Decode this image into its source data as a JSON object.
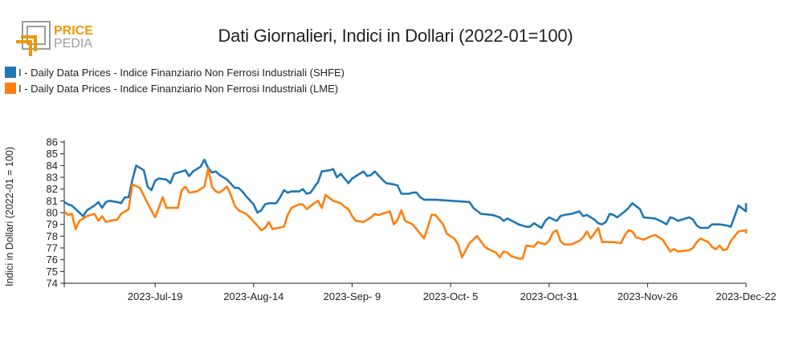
{
  "logo": {
    "word1": "PRICE",
    "word2": "PEDIA"
  },
  "chart_data": {
    "type": "line",
    "title": "Dati Giornalieri, Indici in Dollari (2022-01=100)",
    "xlabel": "",
    "ylabel": "Indici in Dollari (2022-01 = 100)",
    "ylim": [
      74,
      86
    ],
    "yticks": [
      74,
      75,
      76,
      77,
      78,
      79,
      80,
      81,
      82,
      83,
      84,
      85,
      86
    ],
    "x_start": "2023-06-25",
    "x_end": "2023-12-22",
    "xticks": [
      {
        "date": "2023-07-19",
        "label": "2023-Jul-19"
      },
      {
        "date": "2023-08-14",
        "label": "2023-Aug-14"
      },
      {
        "date": "2023-09-09",
        "label": "2023-Sep- 9"
      },
      {
        "date": "2023-10-05",
        "label": "2023-Oct- 5"
      },
      {
        "date": "2023-10-31",
        "label": "2023-Oct-31"
      },
      {
        "date": "2023-11-26",
        "label": "2023-Nov-26"
      },
      {
        "date": "2023-12-22",
        "label": "2023-Dec-22"
      }
    ],
    "grid": false,
    "legend_position": "top-left",
    "series": [
      {
        "name": "I - Daily Data Prices - Indice Finanziario Non Ferrosi Industriali (SHFE)",
        "color": "#1f77b4",
        "points": [
          [
            "2023-06-25",
            80.9
          ],
          [
            "2023-06-26",
            80.7
          ],
          [
            "2023-06-27",
            80.6
          ],
          [
            "2023-06-28",
            80.3
          ],
          [
            "2023-06-29",
            80.0
          ],
          [
            "2023-06-30",
            79.7
          ],
          [
            "2023-07-01",
            80.2
          ],
          [
            "2023-07-03",
            80.6
          ],
          [
            "2023-07-04",
            80.9
          ],
          [
            "2023-07-05",
            80.4
          ],
          [
            "2023-07-06",
            80.9
          ],
          [
            "2023-07-07",
            81.0
          ],
          [
            "2023-07-09",
            80.9
          ],
          [
            "2023-07-10",
            80.8
          ],
          [
            "2023-07-11",
            81.3
          ],
          [
            "2023-07-12",
            81.3
          ],
          [
            "2023-07-13",
            82.8
          ],
          [
            "2023-07-14",
            84.0
          ],
          [
            "2023-07-16",
            83.6
          ],
          [
            "2023-07-17",
            82.2
          ],
          [
            "2023-07-18",
            81.9
          ],
          [
            "2023-07-19",
            82.7
          ],
          [
            "2023-07-20",
            82.9
          ],
          [
            "2023-07-22",
            82.8
          ],
          [
            "2023-07-23",
            82.5
          ],
          [
            "2023-07-24",
            83.3
          ],
          [
            "2023-07-26",
            83.5
          ],
          [
            "2023-07-27",
            83.6
          ],
          [
            "2023-07-28",
            83.1
          ],
          [
            "2023-07-29",
            83.5
          ],
          [
            "2023-07-31",
            83.9
          ],
          [
            "2023-08-01",
            84.5
          ],
          [
            "2023-08-02",
            83.8
          ],
          [
            "2023-08-03",
            83.4
          ],
          [
            "2023-08-04",
            83.5
          ],
          [
            "2023-08-05",
            83.2
          ],
          [
            "2023-08-07",
            82.8
          ],
          [
            "2023-08-09",
            82.1
          ],
          [
            "2023-08-10",
            82.1
          ],
          [
            "2023-08-11",
            81.8
          ],
          [
            "2023-08-12",
            81.4
          ],
          [
            "2023-08-14",
            80.7
          ],
          [
            "2023-08-15",
            80.0
          ],
          [
            "2023-08-16",
            80.2
          ],
          [
            "2023-08-17",
            80.7
          ],
          [
            "2023-08-18",
            80.8
          ],
          [
            "2023-08-20",
            80.8
          ],
          [
            "2023-08-21",
            81.3
          ],
          [
            "2023-08-22",
            81.9
          ],
          [
            "2023-08-23",
            81.7
          ],
          [
            "2023-08-24",
            81.8
          ],
          [
            "2023-08-26",
            81.8
          ],
          [
            "2023-08-27",
            82.0
          ],
          [
            "2023-08-28",
            81.6
          ],
          [
            "2023-08-29",
            81.7
          ],
          [
            "2023-08-31",
            82.6
          ],
          [
            "2023-09-01",
            83.5
          ],
          [
            "2023-09-03",
            83.6
          ],
          [
            "2023-09-04",
            83.7
          ],
          [
            "2023-09-05",
            83.0
          ],
          [
            "2023-09-06",
            83.3
          ],
          [
            "2023-09-08",
            82.5
          ],
          [
            "2023-09-09",
            82.9
          ],
          [
            "2023-09-10",
            83.1
          ],
          [
            "2023-09-12",
            83.5
          ],
          [
            "2023-09-13",
            83.1
          ],
          [
            "2023-09-14",
            83.2
          ],
          [
            "2023-09-15",
            83.5
          ],
          [
            "2023-09-17",
            82.8
          ],
          [
            "2023-09-18",
            82.5
          ],
          [
            "2023-09-20",
            82.4
          ],
          [
            "2023-09-21",
            82.3
          ],
          [
            "2023-09-22",
            81.6
          ],
          [
            "2023-09-24",
            81.6
          ],
          [
            "2023-09-25",
            81.7
          ],
          [
            "2023-09-26",
            81.7
          ],
          [
            "2023-09-27",
            81.3
          ],
          [
            "2023-09-28",
            81.1
          ],
          [
            "2023-09-30",
            81.1
          ],
          [
            "2023-10-01",
            81.1
          ],
          [
            "2023-10-10",
            80.9
          ],
          [
            "2023-10-11",
            80.4
          ],
          [
            "2023-10-13",
            79.9
          ],
          [
            "2023-10-16",
            79.8
          ],
          [
            "2023-10-18",
            79.6
          ],
          [
            "2023-10-19",
            79.3
          ],
          [
            "2023-10-20",
            79.5
          ],
          [
            "2023-10-23",
            79.0
          ],
          [
            "2023-10-25",
            78.8
          ],
          [
            "2023-10-26",
            78.8
          ],
          [
            "2023-10-27",
            79.1
          ],
          [
            "2023-10-29",
            78.7
          ],
          [
            "2023-10-30",
            79.3
          ],
          [
            "2023-10-31",
            79.6
          ],
          [
            "2023-11-02",
            79.3
          ],
          [
            "2023-11-03",
            79.7
          ],
          [
            "2023-11-04",
            79.8
          ],
          [
            "2023-11-06",
            79.9
          ],
          [
            "2023-11-08",
            80.1
          ],
          [
            "2023-11-09",
            79.7
          ],
          [
            "2023-11-10",
            79.8
          ],
          [
            "2023-11-12",
            79.4
          ],
          [
            "2023-11-13",
            79.1
          ],
          [
            "2023-11-14",
            79.0
          ],
          [
            "2023-11-15",
            79.2
          ],
          [
            "2023-11-16",
            79.9
          ],
          [
            "2023-11-17",
            79.8
          ],
          [
            "2023-11-18",
            79.6
          ],
          [
            "2023-11-20",
            80.1
          ],
          [
            "2023-11-21",
            80.4
          ],
          [
            "2023-11-22",
            80.8
          ],
          [
            "2023-11-24",
            80.3
          ],
          [
            "2023-11-25",
            79.6
          ],
          [
            "2023-11-28",
            79.5
          ],
          [
            "2023-11-30",
            79.2
          ],
          [
            "2023-12-01",
            79.0
          ],
          [
            "2023-12-02",
            79.6
          ],
          [
            "2023-12-03",
            79.5
          ],
          [
            "2023-12-04",
            79.3
          ],
          [
            "2023-12-07",
            79.6
          ],
          [
            "2023-12-08",
            79.4
          ],
          [
            "2023-12-09",
            78.9
          ],
          [
            "2023-12-10",
            78.7
          ],
          [
            "2023-12-12",
            78.7
          ],
          [
            "2023-12-13",
            79.0
          ],
          [
            "2023-12-15",
            79.0
          ],
          [
            "2023-12-17",
            78.9
          ],
          [
            "2023-12-18",
            78.8
          ],
          [
            "2023-12-20",
            80.6
          ],
          [
            "2023-12-24",
            80.1
          ],
          [
            "2023-12-25",
            80.4
          ],
          [
            "2023-12-26",
            80.3
          ],
          [
            "2023-12-27",
            80.8
          ]
        ]
      },
      {
        "name": "I - Daily Data Prices - Indice Finanziario Non Ferrosi Industriali (LME)",
        "color": "#ff7f0e",
        "points": [
          [
            "2023-06-25",
            80.1
          ],
          [
            "2023-06-26",
            79.8
          ],
          [
            "2023-06-27",
            79.9
          ],
          [
            "2023-06-28",
            78.6
          ],
          [
            "2023-06-29",
            79.3
          ],
          [
            "2023-07-01",
            79.7
          ],
          [
            "2023-07-03",
            79.9
          ],
          [
            "2023-07-04",
            79.3
          ],
          [
            "2023-07-05",
            79.7
          ],
          [
            "2023-07-06",
            79.2
          ],
          [
            "2023-07-07",
            79.3
          ],
          [
            "2023-07-09",
            79.4
          ],
          [
            "2023-07-10",
            79.9
          ],
          [
            "2023-07-12",
            80.3
          ],
          [
            "2023-07-13",
            82.4
          ],
          [
            "2023-07-15",
            82.1
          ],
          [
            "2023-07-17",
            80.8
          ],
          [
            "2023-07-19",
            79.6
          ],
          [
            "2023-07-21",
            81.3
          ],
          [
            "2023-07-22",
            80.4
          ],
          [
            "2023-07-25",
            80.4
          ],
          [
            "2023-07-26",
            81.9
          ],
          [
            "2023-07-27",
            82.2
          ],
          [
            "2023-07-28",
            81.7
          ],
          [
            "2023-07-30",
            81.8
          ],
          [
            "2023-08-01",
            82.2
          ],
          [
            "2023-08-02",
            83.7
          ],
          [
            "2023-08-03",
            82.2
          ],
          [
            "2023-08-04",
            81.8
          ],
          [
            "2023-08-05",
            81.7
          ],
          [
            "2023-08-07",
            82.2
          ],
          [
            "2023-08-08",
            81.5
          ],
          [
            "2023-08-09",
            80.6
          ],
          [
            "2023-08-10",
            80.2
          ],
          [
            "2023-08-12",
            79.9
          ],
          [
            "2023-08-13",
            79.6
          ],
          [
            "2023-08-15",
            78.9
          ],
          [
            "2023-08-16",
            78.5
          ],
          [
            "2023-08-17",
            78.7
          ],
          [
            "2023-08-18",
            79.2
          ],
          [
            "2023-08-19",
            78.6
          ],
          [
            "2023-08-22",
            78.8
          ],
          [
            "2023-08-23",
            79.8
          ],
          [
            "2023-08-24",
            80.4
          ],
          [
            "2023-08-26",
            80.7
          ],
          [
            "2023-08-27",
            80.7
          ],
          [
            "2023-08-28",
            80.3
          ],
          [
            "2023-08-30",
            80.8
          ],
          [
            "2023-08-31",
            81.0
          ],
          [
            "2023-09-01",
            80.4
          ],
          [
            "2023-09-02",
            81.5
          ],
          [
            "2023-09-04",
            81.0
          ],
          [
            "2023-09-06",
            80.8
          ],
          [
            "2023-09-07",
            80.5
          ],
          [
            "2023-09-08",
            80.3
          ],
          [
            "2023-09-09",
            79.7
          ],
          [
            "2023-09-10",
            79.3
          ],
          [
            "2023-09-12",
            79.2
          ],
          [
            "2023-09-14",
            79.6
          ],
          [
            "2023-09-15",
            79.9
          ],
          [
            "2023-09-16",
            79.8
          ],
          [
            "2023-09-19",
            80.1
          ],
          [
            "2023-09-20",
            79.0
          ],
          [
            "2023-09-21",
            79.4
          ],
          [
            "2023-09-22",
            80.2
          ],
          [
            "2023-09-23",
            79.3
          ],
          [
            "2023-09-25",
            79.0
          ],
          [
            "2023-09-26",
            78.6
          ],
          [
            "2023-09-28",
            77.8
          ],
          [
            "2023-09-30",
            79.8
          ],
          [
            "2023-10-01",
            79.8
          ],
          [
            "2023-10-02",
            79.4
          ],
          [
            "2023-10-03",
            79.0
          ],
          [
            "2023-10-04",
            78.2
          ],
          [
            "2023-10-06",
            77.8
          ],
          [
            "2023-10-07",
            77.3
          ],
          [
            "2023-10-08",
            76.2
          ],
          [
            "2023-10-10",
            77.4
          ],
          [
            "2023-10-12",
            78.0
          ],
          [
            "2023-10-14",
            77.1
          ],
          [
            "2023-10-15",
            76.9
          ],
          [
            "2023-10-17",
            76.6
          ],
          [
            "2023-10-18",
            76.2
          ],
          [
            "2023-10-19",
            76.7
          ],
          [
            "2023-10-20",
            76.6
          ],
          [
            "2023-10-21",
            76.3
          ],
          [
            "2023-10-23",
            76.1
          ],
          [
            "2023-10-24",
            76.1
          ],
          [
            "2023-10-25",
            77.2
          ],
          [
            "2023-10-27",
            77.1
          ],
          [
            "2023-10-28",
            77.5
          ],
          [
            "2023-10-30",
            77.3
          ],
          [
            "2023-10-31",
            77.6
          ],
          [
            "2023-11-01",
            78.3
          ],
          [
            "2023-11-02",
            78.5
          ],
          [
            "2023-11-03",
            77.6
          ],
          [
            "2023-11-04",
            77.3
          ],
          [
            "2023-11-06",
            77.3
          ],
          [
            "2023-11-08",
            77.6
          ],
          [
            "2023-11-09",
            77.9
          ],
          [
            "2023-11-10",
            78.4
          ],
          [
            "2023-11-11",
            77.8
          ],
          [
            "2023-11-13",
            78.7
          ],
          [
            "2023-11-14",
            77.5
          ],
          [
            "2023-11-17",
            77.5
          ],
          [
            "2023-11-19",
            77.4
          ],
          [
            "2023-11-20",
            78.1
          ],
          [
            "2023-11-21",
            78.5
          ],
          [
            "2023-11-22",
            78.4
          ],
          [
            "2023-11-23",
            77.9
          ],
          [
            "2023-11-25",
            77.7
          ],
          [
            "2023-11-27",
            78.0
          ],
          [
            "2023-11-28",
            78.1
          ],
          [
            "2023-11-29",
            77.9
          ],
          [
            "2023-11-30",
            77.7
          ],
          [
            "2023-12-01",
            77.2
          ],
          [
            "2023-12-02",
            76.7
          ],
          [
            "2023-12-03",
            76.9
          ],
          [
            "2023-12-04",
            76.7
          ],
          [
            "2023-12-07",
            76.8
          ],
          [
            "2023-12-08",
            77.0
          ],
          [
            "2023-12-09",
            77.5
          ],
          [
            "2023-12-10",
            77.8
          ],
          [
            "2023-12-12",
            77.5
          ],
          [
            "2023-12-13",
            77.1
          ],
          [
            "2023-12-14",
            76.9
          ],
          [
            "2023-12-15",
            77.2
          ],
          [
            "2023-12-16",
            76.8
          ],
          [
            "2023-12-17",
            76.9
          ],
          [
            "2023-12-18",
            77.6
          ],
          [
            "2023-12-20",
            78.4
          ],
          [
            "2023-12-22",
            78.5
          ],
          [
            "2023-12-23",
            78.4
          ],
          [
            "2023-12-25",
            78.3
          ],
          [
            "2023-12-26",
            78.6
          ]
        ]
      }
    ]
  }
}
